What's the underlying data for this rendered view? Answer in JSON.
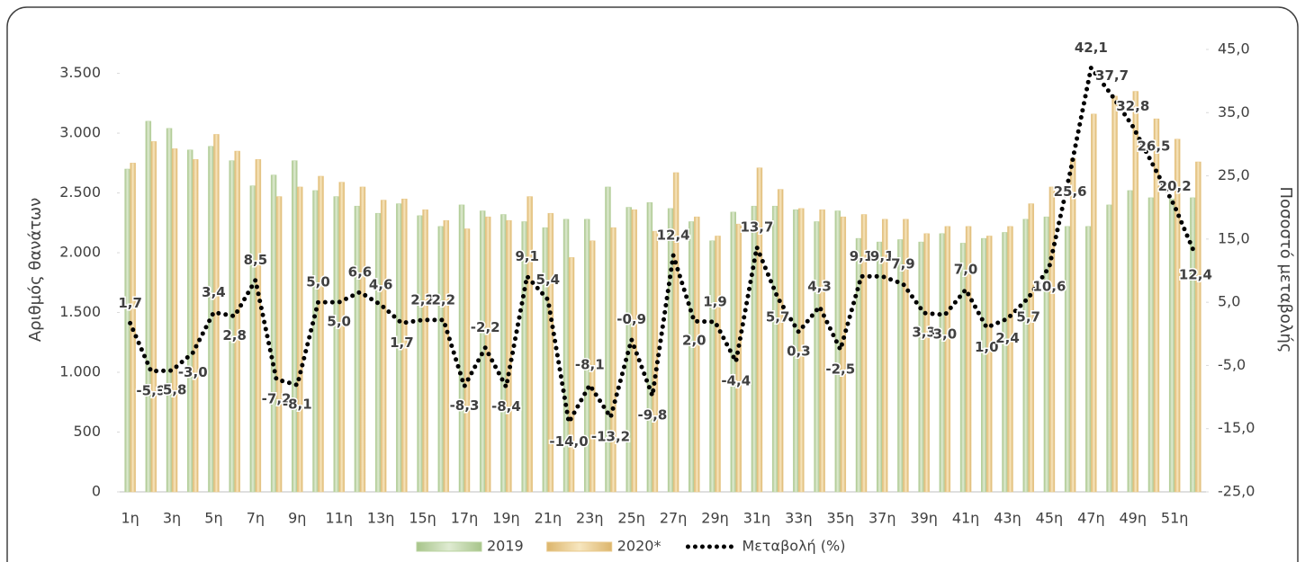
{
  "chart_data": {
    "type": "bar",
    "y_label": "Αριθμός θανάτων",
    "y2_label": "Ποσοστό μεταβολής",
    "categories": [
      "1η",
      null,
      "3η",
      null,
      "5η",
      null,
      "7η",
      null,
      "9η",
      null,
      "11η",
      null,
      "13η",
      null,
      "15η",
      null,
      "17η",
      null,
      "19η",
      null,
      "21η",
      null,
      "23η",
      null,
      "25η",
      null,
      "27η",
      null,
      "29η",
      null,
      "31η",
      null,
      "33η",
      null,
      "35η",
      null,
      "37η",
      null,
      "39η",
      null,
      "41η",
      null,
      "43η",
      null,
      "45η",
      null,
      "47η",
      null,
      "49η",
      null,
      "51η",
      null
    ],
    "series": [
      {
        "name": "2019",
        "color": "#b9d39f",
        "values": [
          2700,
          3100,
          3040,
          2860,
          2890,
          2770,
          2560,
          2650,
          2770,
          2520,
          2470,
          2390,
          2330,
          2410,
          2310,
          2220,
          2400,
          2350,
          2320,
          2260,
          2210,
          2280,
          2280,
          2550,
          2380,
          2420,
          2370,
          2260,
          2100,
          2340,
          2390,
          2390,
          2360,
          2260,
          2350,
          2120,
          2090,
          2110,
          2090,
          2160,
          2080,
          2120,
          2170,
          2280,
          2300,
          2220,
          2220,
          2400,
          2520,
          2460,
          2450,
          2460
        ]
      },
      {
        "name": "2020*",
        "color": "#e9c98b",
        "values": [
          2750,
          2930,
          2870,
          2780,
          2990,
          2850,
          2780,
          2470,
          2550,
          2640,
          2590,
          2550,
          2440,
          2450,
          2360,
          2270,
          2200,
          2300,
          2270,
          2470,
          2330,
          1960,
          2100,
          2210,
          2360,
          2180,
          2670,
          2300,
          2140,
          2240,
          2710,
          2530,
          2370,
          2360,
          2300,
          2320,
          2280,
          2280,
          2160,
          2220,
          2220,
          2140,
          2220,
          2410,
          2550,
          2790,
          3160,
          3310,
          3350,
          3120,
          2950,
          2760
        ]
      },
      {
        "name": "Μεταβολή (%)",
        "type": "line",
        "axis": "y2",
        "color": "#000000",
        "values": [
          1.7,
          -5.9,
          -5.8,
          -3.0,
          3.4,
          2.8,
          8.5,
          -7.2,
          -8.1,
          5.0,
          5.0,
          6.6,
          4.6,
          1.7,
          2.2,
          2.2,
          -8.3,
          -2.2,
          -8.4,
          9.1,
          5.4,
          -14.0,
          -8.1,
          -13.2,
          -0.9,
          -9.8,
          12.4,
          2.0,
          1.9,
          -4.4,
          13.7,
          5.7,
          0.3,
          4.3,
          -2.5,
          9.1,
          9.1,
          7.9,
          3.3,
          3.0,
          7.0,
          1.0,
          2.4,
          5.7,
          10.6,
          25.6,
          42.1,
          37.7,
          32.8,
          26.5,
          20.2,
          12.4
        ],
        "value_labels": [
          "1,7",
          "-5,9",
          "-5,8",
          "-3,0",
          "3,4",
          "2,8",
          "8,5",
          "-7,2",
          "-8,1",
          "5,0",
          "5,0",
          "6,6",
          "4,6",
          "1,7",
          "2,2",
          "2,2",
          "-8,3",
          "-2,2",
          "-8,4",
          "9,1",
          "5,4",
          "-14,0",
          "-8,1",
          "-13,2",
          "-0,9",
          "-9,8",
          "12,4",
          "2,0",
          "1,9",
          "-4,4",
          "13,7",
          "5,7",
          "0,3",
          "4,3",
          "-2,5",
          "9,1",
          "9,1",
          "7,9",
          "3,3",
          "3,0",
          "7,0",
          "1,0",
          "2,4",
          "5,7",
          "10,6",
          "25,6",
          "42,1",
          "37,7",
          "32,8",
          "26,5",
          "20,2",
          "12,4"
        ]
      }
    ],
    "ylim": [
      0,
      3700
    ],
    "yticks": [
      0,
      500,
      {
        "value": 1000,
        "label": "1.000"
      },
      {
        "value": 1500,
        "label": "1.500"
      },
      {
        "value": 2000,
        "label": "2.000"
      },
      {
        "value": 2500,
        "label": "2.500"
      },
      {
        "value": 3000,
        "label": "3.000"
      },
      {
        "value": 3500,
        "label": "3.500"
      }
    ],
    "y2lim": [
      -25,
      45
    ],
    "y2ticks": [
      {
        "value": -25,
        "label": "-25,0"
      },
      {
        "value": -15,
        "label": "-15,0"
      },
      {
        "value": -5,
        "label": "-5,0"
      },
      {
        "value": 5,
        "label": "5,0"
      },
      {
        "value": 15,
        "label": "15,0"
      },
      {
        "value": 25,
        "label": "25,0"
      },
      {
        "value": 35,
        "label": "35,0"
      },
      {
        "value": 45,
        "label": "45,0"
      }
    ],
    "grid": false,
    "legend": "bottom"
  }
}
